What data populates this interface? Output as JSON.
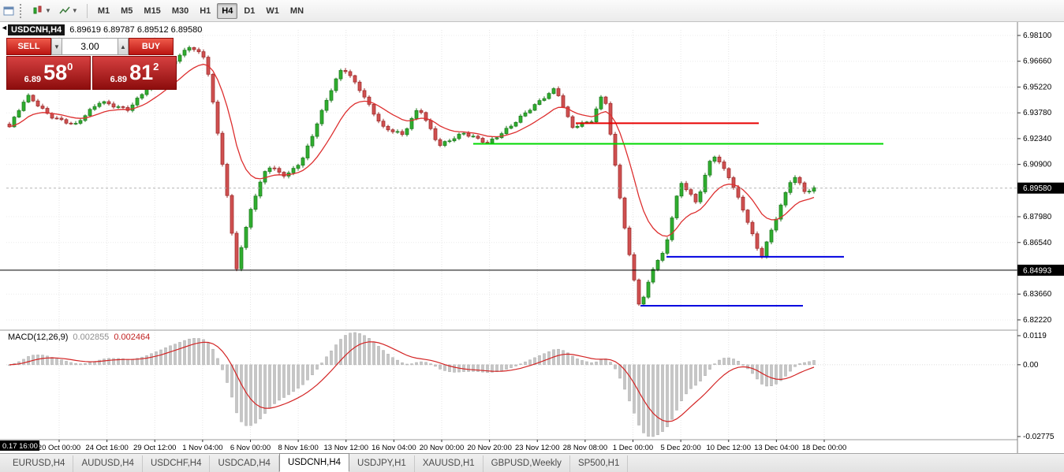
{
  "toolbar": {
    "timeframes": [
      "M1",
      "M5",
      "M15",
      "M30",
      "H1",
      "H4",
      "D1",
      "W1",
      "MN"
    ],
    "active_timeframe": "H4"
  },
  "chart": {
    "title_symbol": "USDCNH,H4",
    "ohlc": "6.89619 6.89787 6.89512 6.89580"
  },
  "one_click": {
    "sell_label": "SELL",
    "buy_label": "BUY",
    "volume": "3.00",
    "spin_down": "▼",
    "spin_up": "▲",
    "sell_price_handle": "6.89",
    "sell_price_big": "58",
    "sell_price_sup": "0",
    "buy_price_handle": "6.89",
    "buy_price_big": "81",
    "buy_price_sup": "2"
  },
  "macd_panel": {
    "label": "MACD(12,26,9)",
    "value_main": "0.002855",
    "value_signal": "0.002464",
    "axis_top": "0.0119",
    "axis_zero": "0.00",
    "axis_bottom": "-0.02775"
  },
  "price_axis": {
    "current_badge": "6.89580",
    "level_badge": "6.84993"
  },
  "time_axis": {
    "first_badge": "0.17 16:00"
  },
  "tabs": {
    "items": [
      "EURUSD,H4",
      "AUDUSD,H4",
      "USDCHF,H4",
      "USDCAD,H4",
      "USDCNH,H4",
      "USDJPY,H1",
      "XAUUSD,H1",
      "GBPUSD,Weekly",
      "SP500,H1"
    ],
    "active": "USDCNH,H4"
  },
  "chart_data": {
    "type": "candlestick",
    "symbol": "USDCNH",
    "timeframe": "H4",
    "open": 6.89619,
    "high": 6.89787,
    "low": 6.89512,
    "close": 6.8958,
    "current_price": 6.8958,
    "marked_level": 6.84993,
    "y_ticks": [
      6.981,
      6.9666,
      6.9522,
      6.9378,
      6.9234,
      6.909,
      6.8798,
      6.8654,
      6.8366,
      6.8222
    ],
    "x_labels": [
      "20 Oct 00:00",
      "24 Oct 16:00",
      "29 Oct 12:00",
      "1 Nov 04:00",
      "6 Nov 00:00",
      "8 Nov 16:00",
      "13 Nov 12:00",
      "16 Nov 04:00",
      "20 Nov 00:00",
      "20 Nov 20:00",
      "23 Nov 12:00",
      "28 Nov 08:00",
      "1 Dec 00:00",
      "5 Dec 20:00",
      "10 Dec 12:00",
      "13 Dec 04:00",
      "18 Dec 00:00"
    ],
    "price_path": [
      [
        0.0,
        6.93
      ],
      [
        0.022,
        6.947
      ],
      [
        0.05,
        6.9365
      ],
      [
        0.082,
        6.931
      ],
      [
        0.113,
        6.944
      ],
      [
        0.148,
        6.94
      ],
      [
        0.193,
        6.962
      ],
      [
        0.224,
        6.9755
      ],
      [
        0.244,
        6.968
      ],
      [
        0.268,
        6.9
      ],
      [
        0.282,
        6.851
      ],
      [
        0.3,
        6.885
      ],
      [
        0.32,
        6.908
      ],
      [
        0.344,
        6.902
      ],
      [
        0.364,
        6.912
      ],
      [
        0.394,
        6.945
      ],
      [
        0.414,
        6.963
      ],
      [
        0.434,
        6.952
      ],
      [
        0.464,
        6.93
      ],
      [
        0.489,
        6.925
      ],
      [
        0.509,
        6.941
      ],
      [
        0.534,
        6.92
      ],
      [
        0.564,
        6.926
      ],
      [
        0.594,
        6.921
      ],
      [
        0.624,
        6.931
      ],
      [
        0.654,
        6.942
      ],
      [
        0.679,
        6.952
      ],
      [
        0.699,
        6.93
      ],
      [
        0.724,
        6.933
      ],
      [
        0.739,
        6.95
      ],
      [
        0.754,
        6.905
      ],
      [
        0.769,
        6.862
      ],
      [
        0.784,
        6.828
      ],
      [
        0.799,
        6.85
      ],
      [
        0.814,
        6.86
      ],
      [
        0.834,
        6.9
      ],
      [
        0.854,
        6.888
      ],
      [
        0.874,
        6.915
      ],
      [
        0.894,
        6.902
      ],
      [
        0.914,
        6.882
      ],
      [
        0.934,
        6.857
      ],
      [
        0.954,
        6.88
      ],
      [
        0.974,
        6.903
      ],
      [
        0.989,
        6.894
      ],
      [
        1.0,
        6.8958
      ]
    ],
    "levels": [
      {
        "price": 6.932,
        "x1": 730,
        "x2": 962,
        "color": "#e80000",
        "w": 2,
        "dash": false
      },
      {
        "price": 6.9205,
        "x1": 600,
        "x2": 1120,
        "color": "#00d800",
        "w": 2,
        "dash": false
      },
      {
        "price": 6.8574,
        "x1": 845,
        "x2": 1070,
        "color": "#0000e0",
        "w": 2,
        "dash": false
      },
      {
        "price": 6.8301,
        "x1": 812,
        "x2": 1018,
        "color": "#0000e0",
        "w": 2,
        "dash": false
      },
      {
        "price": 6.84993,
        "x1": 0,
        "x2": 1290,
        "color": "#000000",
        "w": 1,
        "dash": false
      },
      {
        "price": 6.8958,
        "x1": 8,
        "x2": 1290,
        "color": "#b4b4b4",
        "w": 1,
        "dash": true
      }
    ],
    "indicators": {
      "ma_period": 13,
      "macd": [
        12,
        26,
        9
      ]
    },
    "colors": {
      "up": "#2fae2f",
      "up_border": "#1f7a1f",
      "down": "#d05050",
      "down_border": "#9c2b2b",
      "ma": "#dd2f2f",
      "macd_hist": "#c6c6c6",
      "macd_signal": "#d32424"
    }
  }
}
